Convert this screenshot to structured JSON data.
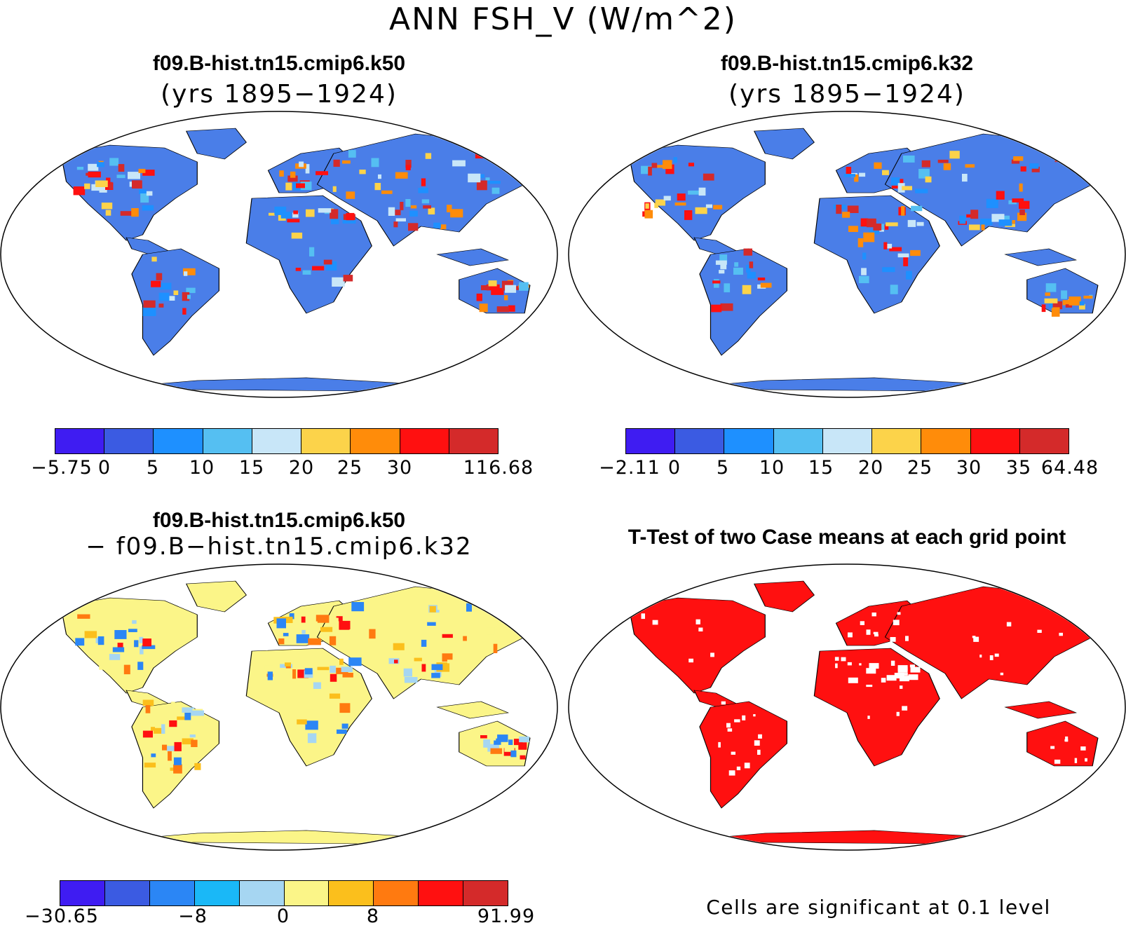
{
  "title": "ANN FSH_V (W/m^2)",
  "panels": {
    "top_left": {
      "title": "f09.B-hist.tn15.cmip6.k50",
      "subtitle": "(yrs 1895−1924)"
    },
    "top_right": {
      "title": "f09.B-hist.tn15.cmip6.k32",
      "subtitle": "(yrs 1895−1924)"
    },
    "bottom_left": {
      "title": "f09.B-hist.tn15.cmip6.k50",
      "subtitle": "− f09.B−hist.tn15.cmip6.k32"
    },
    "bottom_right": {
      "title": "T-Test of two Case means at each grid point",
      "note": "Cells are significant at 0.1 level"
    }
  },
  "colorbars": {
    "top_left": {
      "colors": [
        "#3f1cf2",
        "#3b5be2",
        "#1e90ff",
        "#55bff2",
        "#c8e6f8",
        "#fcd34a",
        "#ff8c0a",
        "#ff1010",
        "#d42a2a"
      ],
      "labels": [
        "−5.75",
        "0",
        "5",
        "10",
        "15",
        "20",
        "25",
        "30",
        "116.68"
      ]
    },
    "top_right": {
      "colors": [
        "#3f1cf2",
        "#3b5be2",
        "#1e90ff",
        "#55bff2",
        "#c8e6f8",
        "#fcd34a",
        "#ff8c0a",
        "#ff1010",
        "#d42a2a"
      ],
      "labels": [
        "−2.11",
        "0",
        "5",
        "10",
        "15",
        "20",
        "25",
        "30",
        "35",
        "64.48"
      ]
    },
    "bottom_left": {
      "colors": [
        "#3f1cf2",
        "#3b5be2",
        "#2b86f5",
        "#1ab8f7",
        "#a6d6f2",
        "#fbf588",
        "#fbbf1c",
        "#ff7a10",
        "#ff1010",
        "#d42a2a"
      ],
      "labels": [
        "−30.65",
        "−8",
        "0",
        "8",
        "91.99"
      ]
    }
  }
}
